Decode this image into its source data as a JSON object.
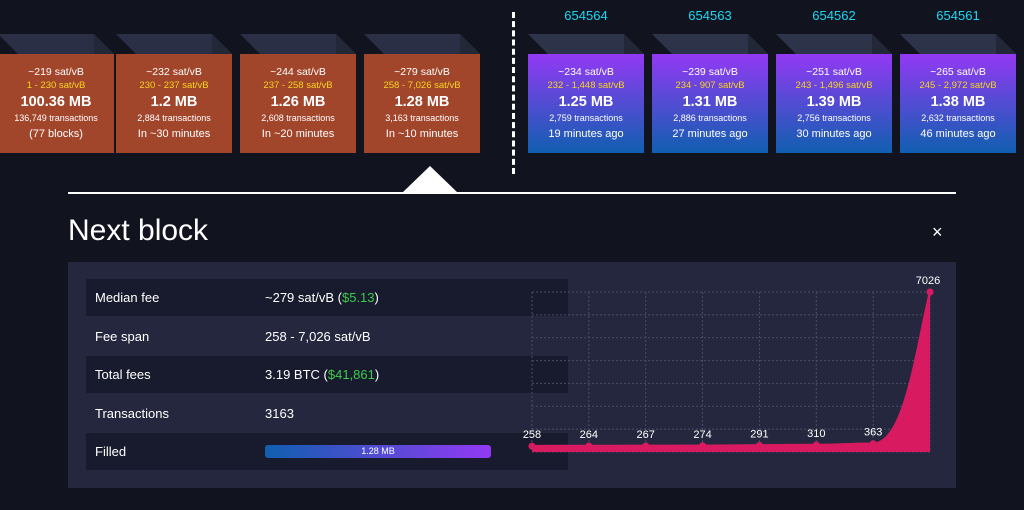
{
  "mempool_blocks": [
    {
      "median_fee": "~219 sat/vB",
      "fee_range": "1 - 230 sat/vB",
      "size": "100.36 MB",
      "tx_count": "136,749 transactions",
      "eta": "(77 blocks)"
    },
    {
      "median_fee": "~232 sat/vB",
      "fee_range": "230 - 237 sat/vB",
      "size": "1.2 MB",
      "tx_count": "2,884 transactions",
      "eta": "In ~30 minutes"
    },
    {
      "median_fee": "~244 sat/vB",
      "fee_range": "237 - 258 sat/vB",
      "size": "1.26 MB",
      "tx_count": "2,608 transactions",
      "eta": "In ~20 minutes"
    },
    {
      "median_fee": "~279 sat/vB",
      "fee_range": "258 - 7,026 sat/vB",
      "size": "1.28 MB",
      "tx_count": "3,163 transactions",
      "eta": "In ~10 minutes"
    }
  ],
  "mined_blocks": [
    {
      "height": "654564",
      "median_fee": "~234 sat/vB",
      "fee_range": "232 - 1,448 sat/vB",
      "size": "1.25 MB",
      "tx_count": "2,759 transactions",
      "time_ago": "19 minutes ago"
    },
    {
      "height": "654563",
      "median_fee": "~239 sat/vB",
      "fee_range": "234 - 907 sat/vB",
      "size": "1.31 MB",
      "tx_count": "2,886 transactions",
      "time_ago": "27 minutes ago"
    },
    {
      "height": "654562",
      "median_fee": "~251 sat/vB",
      "fee_range": "243 - 1,496 sat/vB",
      "size": "1.39 MB",
      "tx_count": "2,756 transactions",
      "time_ago": "30 minutes ago"
    },
    {
      "height": "654561",
      "median_fee": "~265 sat/vB",
      "fee_range": "245 - 2,972 sat/vB",
      "size": "1.38 MB",
      "tx_count": "2,632 transactions",
      "time_ago": "46 minutes ago"
    }
  ],
  "details": {
    "title": "Next block",
    "close_glyph": "×",
    "median_fee_label": "Median fee",
    "median_fee_value": "~279 sat/vB",
    "median_fee_usd": "$5.13",
    "fee_span_label": "Fee span",
    "fee_span_value": "258 - 7,026 sat/vB",
    "total_fees_label": "Total fees",
    "total_fees_value": "3.19 BTC",
    "total_fees_usd": "$41,861",
    "transactions_label": "Transactions",
    "transactions_value": "3163",
    "filled_label": "Filled",
    "filled_value": "1.28 MB",
    "filled_fraction": 1.0
  },
  "colors": {
    "mempool_block": "#a1452b",
    "mined_top": "#9339f4",
    "mined_bottom": "#105fb0",
    "accent_cyan": "#1bd8f4",
    "fee_yellow": "#f7d51e",
    "usd_green": "#3bcc49",
    "chart_pink": "#d81b60"
  },
  "chart_data": {
    "type": "area",
    "points": [
      {
        "label": "258",
        "value": 258
      },
      {
        "label": "264",
        "value": 264
      },
      {
        "label": "267",
        "value": 267
      },
      {
        "label": "274",
        "value": 274
      },
      {
        "label": "291",
        "value": 291
      },
      {
        "label": "310",
        "value": 310
      },
      {
        "label": "363",
        "value": 363
      },
      {
        "label": "7026",
        "value": 7026
      }
    ],
    "grid": true
  }
}
